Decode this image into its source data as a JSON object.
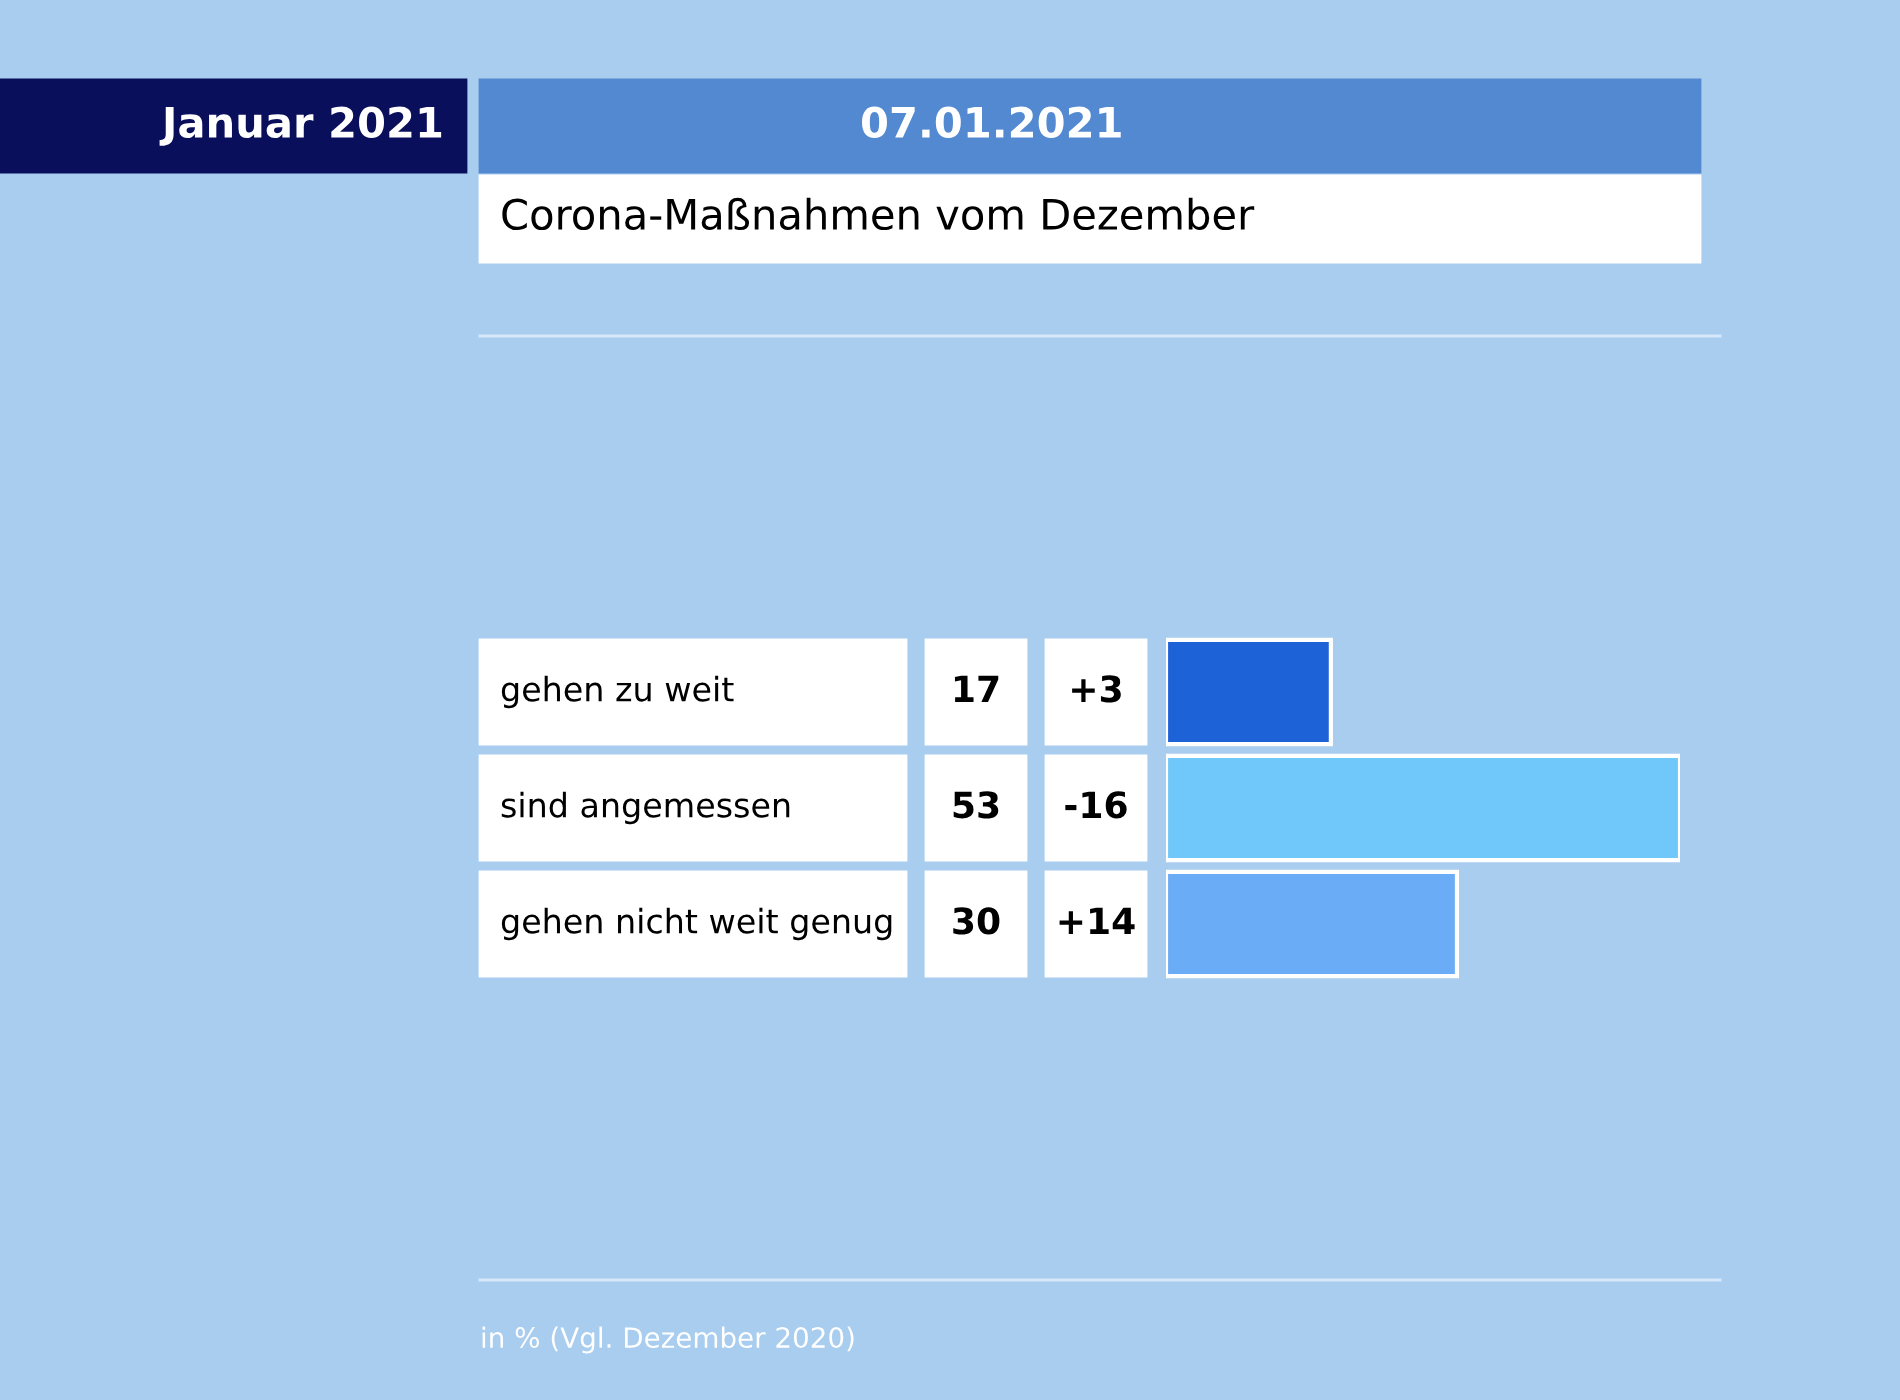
{
  "chart_data": {
    "type": "bar",
    "orientation": "horizontal",
    "title": "Januar 2021",
    "subtitle": "Corona-Maßnahmen vom Dezember",
    "categories": [
      "gehen zu weit",
      "sind angemessen",
      "gehen nicht weit genug"
    ],
    "values": [
      17,
      53,
      30
    ],
    "colors": [
      "#1e62d8",
      "#70c8fa",
      "#6aacf5"
    ],
    "data_labels": true,
    "annotations": [
      "07.01.2021",
      "in % (Vgl. Dezember 2020)",
      "+3",
      "-16",
      "+14"
    ]
  }
}
